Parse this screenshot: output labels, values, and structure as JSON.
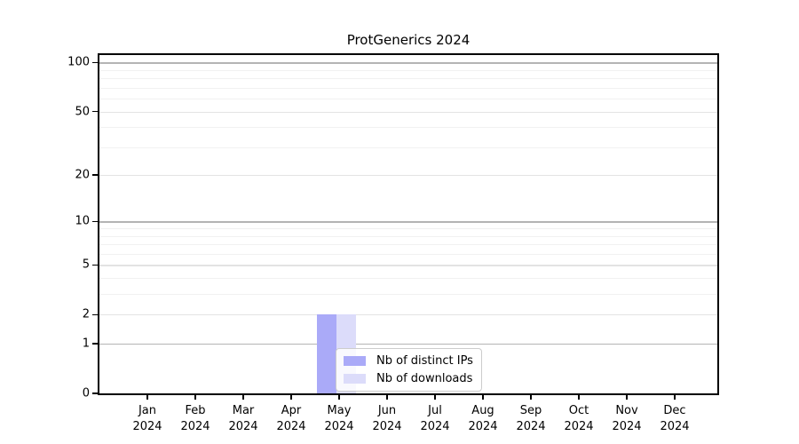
{
  "chart_data": {
    "type": "bar",
    "title": "ProtGenerics 2024",
    "categories": [
      "Jan 2024",
      "Feb 2024",
      "Mar 2024",
      "Apr 2024",
      "May 2024",
      "Jun 2024",
      "Jul 2024",
      "Aug 2024",
      "Sep 2024",
      "Oct 2024",
      "Nov 2024",
      "Dec 2024"
    ],
    "series": [
      {
        "name": "Nb of distinct IPs",
        "color": "#aaaaf8",
        "values": [
          0,
          0,
          0,
          0,
          2,
          0,
          0,
          0,
          0,
          0,
          0,
          0
        ]
      },
      {
        "name": "Nb of downloads",
        "color": "#dcdcfa",
        "values": [
          0,
          0,
          0,
          0,
          2,
          0,
          0,
          0,
          0,
          0,
          0,
          0
        ]
      }
    ],
    "xlabel": "",
    "ylabel": "",
    "y_axis": {
      "scale": "log1p",
      "tick_values": [
        0,
        1,
        2,
        5,
        10,
        20,
        50,
        100
      ],
      "tick_labels": [
        "0",
        "1",
        "2",
        "5",
        "10",
        "20",
        "50",
        "100"
      ],
      "minor_gridline_values": [
        3,
        4,
        6,
        7,
        8,
        9,
        30,
        40,
        60,
        70,
        80,
        90
      ],
      "max_value": 111
    },
    "grid": "horizontal",
    "legend": {
      "position": "inside-bottom-center",
      "entries": [
        "Nb of distinct IPs",
        "Nb of downloads"
      ]
    },
    "colors": {
      "bar_distinct_ips": "#aaaaf8",
      "bar_downloads": "#dcdcfa",
      "grid_major": "#e3e3e3",
      "grid_minor": "#f1f1f1",
      "grid_power10": "#b4b4b4",
      "axis_frame": "#000000",
      "legend_border": "#cccccc",
      "text": "#000000",
      "background": "#ffffff"
    }
  }
}
